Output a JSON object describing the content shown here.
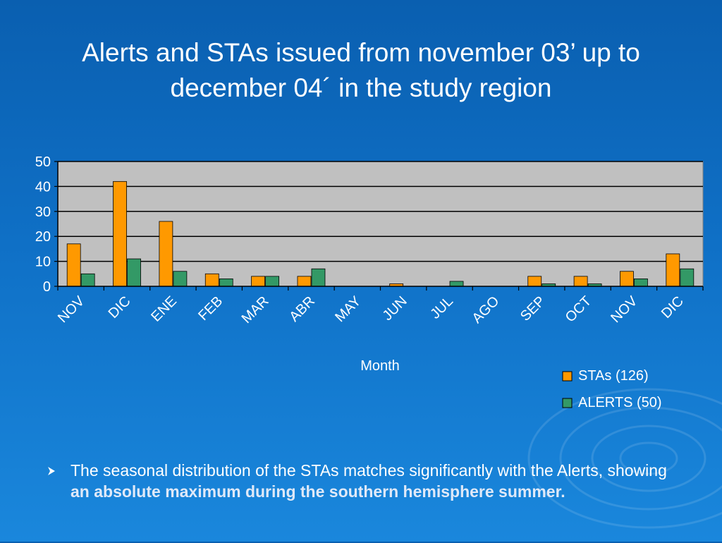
{
  "slide": {
    "title_line1": "Alerts and STAs issued from november 03’ up to",
    "title_line2": "december 04´ in the study region",
    "bullet_normal": "The seasonal distribution of the STAs matches significantly with the Alerts, showing ",
    "bullet_bold": "an absolute maximum during the southern hemisphere summer.",
    "bullet_icon": "arrow-bullet-icon",
    "background_color": "#0f70c6"
  },
  "chart_data": {
    "type": "bar",
    "title": "",
    "xlabel": "Month",
    "ylabel": "",
    "ylim": [
      0,
      50
    ],
    "yticks": [
      0,
      10,
      20,
      30,
      40,
      50
    ],
    "grid": true,
    "legend_position": "bottom-right",
    "categories": [
      "NOV",
      "DIC",
      "ENE",
      "FEB",
      "MAR",
      "ABR",
      "MAY",
      "JUN",
      "JUL",
      "AGO",
      "SEP",
      "OCT",
      "NOV",
      "DIC"
    ],
    "series": [
      {
        "name": "STAs (126)",
        "color": "#ff9900",
        "values": [
          17,
          42,
          26,
          5,
          4,
          4,
          0,
          1,
          0,
          0,
          4,
          4,
          6,
          13
        ]
      },
      {
        "name": "ALERTS (50)",
        "color": "#339966",
        "values": [
          5,
          11,
          6,
          3,
          4,
          7,
          0,
          0,
          2,
          0,
          1,
          1,
          3,
          7
        ]
      }
    ],
    "plot_background": "#c0c0c0"
  }
}
